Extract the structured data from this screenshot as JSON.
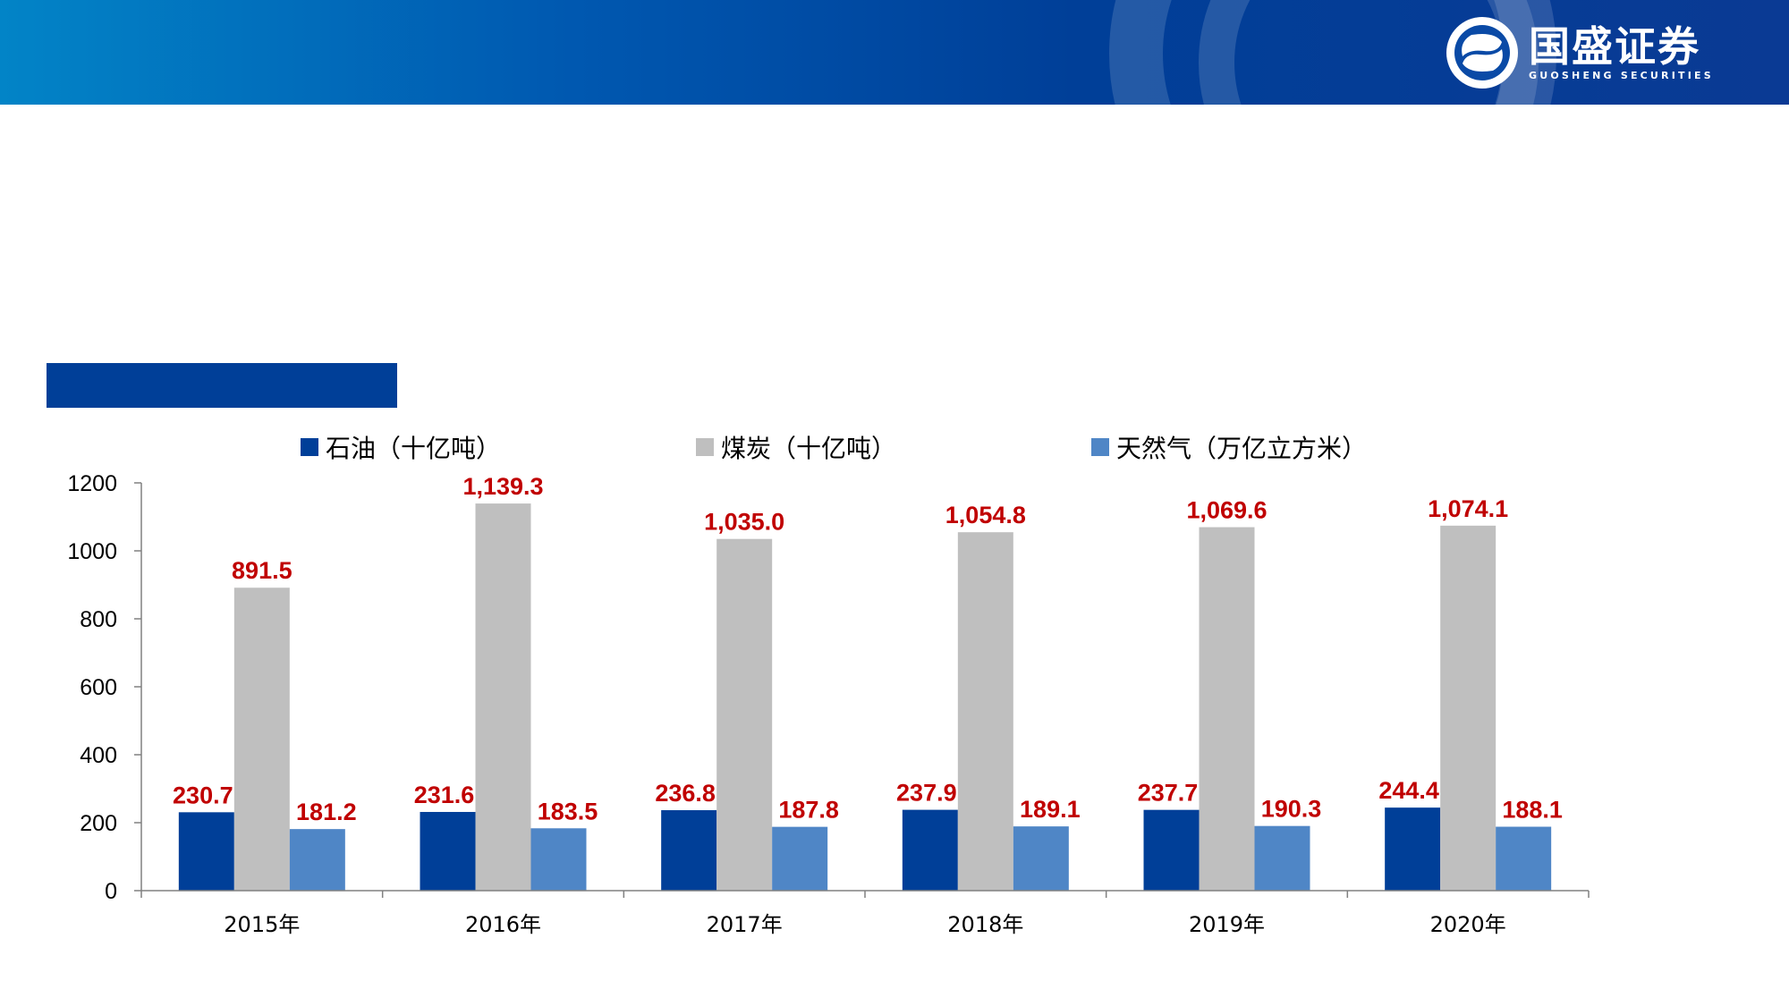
{
  "header": {
    "logo_text": "国盛证券",
    "logo_subtext": "GUOSHENG SECURITIES",
    "logo_icon": "guosheng-logo-icon",
    "colors": {
      "bar_start": "#0284c7",
      "bar_end": "#003f98"
    }
  },
  "chart_data": {
    "type": "bar",
    "title": "",
    "categories": [
      "2015年",
      "2016年",
      "2017年",
      "2018年",
      "2019年",
      "2020年"
    ],
    "series": [
      {
        "name": "石油（十亿吨）",
        "color": "#003f98",
        "values": [
          230.7,
          231.6,
          236.8,
          237.9,
          237.7,
          244.4
        ]
      },
      {
        "name": "煤炭（十亿吨）",
        "color": "#bfbfbf",
        "values": [
          891.5,
          1139.3,
          1035.0,
          1054.8,
          1069.6,
          1074.1
        ]
      },
      {
        "name": "天然气（万亿立方米）",
        "color": "#4f86c6",
        "values": [
          181.2,
          183.5,
          187.8,
          189.1,
          190.3,
          188.1
        ]
      }
    ],
    "value_labels": [
      [
        "230.7",
        "231.6",
        "236.8",
        "237.9",
        "237.7",
        "244.4"
      ],
      [
        "891.5",
        "1,139.3",
        "1,035.0",
        "1,054.8",
        "1,069.6",
        "1,074.1"
      ],
      [
        "181.2",
        "183.5",
        "187.8",
        "189.1",
        "190.3",
        "188.1"
      ]
    ],
    "ylim": [
      0,
      1200
    ],
    "yticks": [
      0,
      200,
      400,
      600,
      800,
      1000,
      1200
    ],
    "value_label_color": "#c00000",
    "legend_position": "top",
    "grid": false,
    "xlabel": "",
    "ylabel": ""
  }
}
